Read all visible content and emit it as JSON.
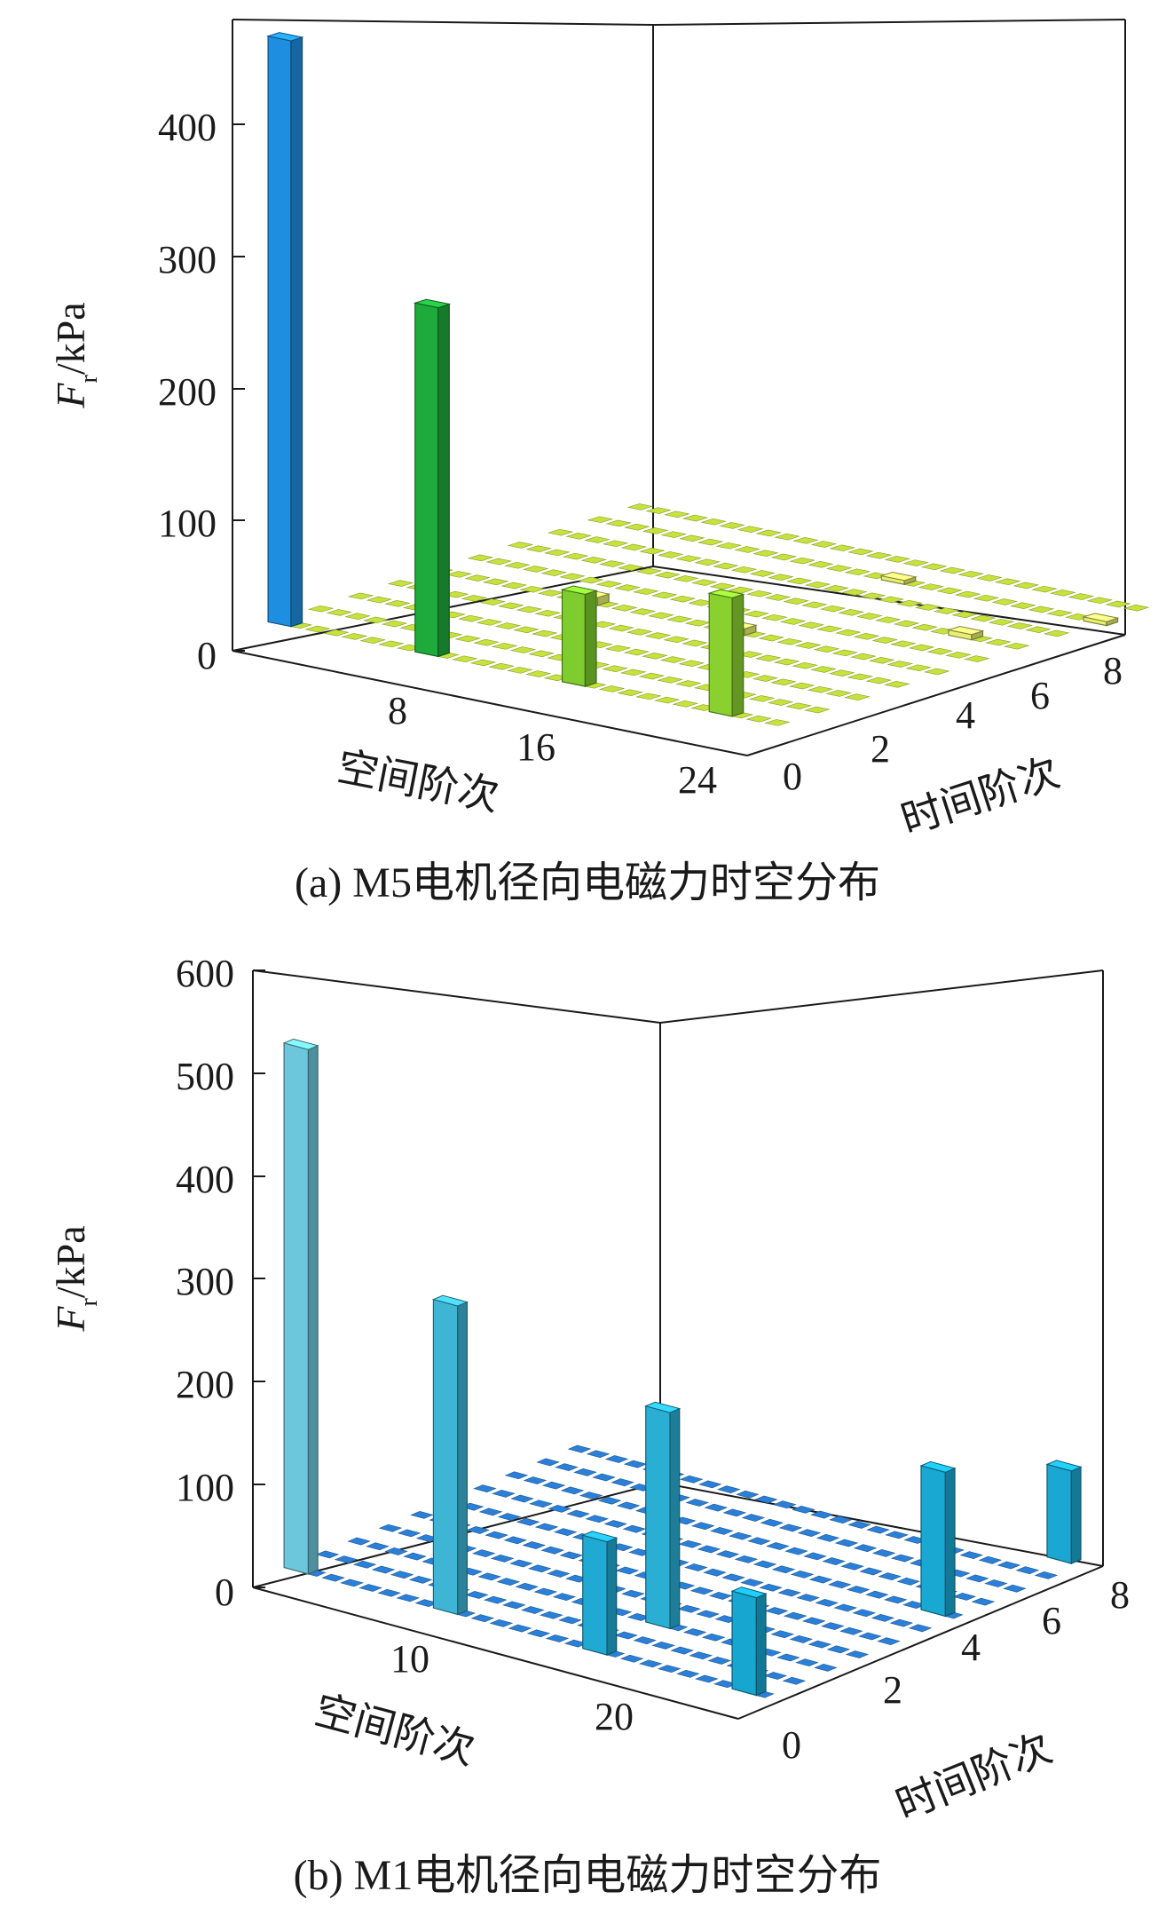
{
  "chart_data": [
    {
      "type": "bar3d",
      "caption": "(a) M5电机径向电磁力时空分布",
      "zlabel_main": "F",
      "zlabel_sub": "r",
      "zlabel_unit": "/kPa",
      "xlabel": "空间阶次",
      "ylabel": "时间阶次",
      "zlim": [
        0,
        480
      ],
      "xlim": [
        0,
        28
      ],
      "ylim": [
        0,
        9
      ],
      "z_ticks": [
        "0",
        "100",
        "200",
        "300",
        "400"
      ],
      "x_ticks": [
        "8",
        "16",
        "24"
      ],
      "y_ticks": [
        "0",
        "2",
        "4",
        "6",
        "8"
      ],
      "bars": [
        {
          "x": 0,
          "y": 0,
          "z": 445,
          "color": "#1e8fe0"
        },
        {
          "x": 8,
          "y": 0,
          "z": 265,
          "color": "#1faa3c"
        },
        {
          "x": 16,
          "y": 0,
          "z": 70,
          "color": "#7fcc2e"
        },
        {
          "x": 24,
          "y": 0,
          "z": 90,
          "color": "#8ad12f"
        },
        {
          "x": 8,
          "y": 4,
          "z": 6,
          "color": "#e8f070"
        },
        {
          "x": 16,
          "y": 4,
          "z": 5,
          "color": "#e8f070"
        },
        {
          "x": 24,
          "y": 6,
          "z": 4,
          "color": "#e8f070"
        },
        {
          "x": 27,
          "y": 8,
          "z": 3,
          "color": "#e8f070"
        },
        {
          "x": 16,
          "y": 8,
          "z": 3,
          "color": "#e8f070"
        }
      ],
      "floor_color": "#c6e23c"
    },
    {
      "type": "bar3d",
      "caption": "(b) M1电机径向电磁力时空分布",
      "zlabel_main": "F",
      "zlabel_sub": "r",
      "zlabel_unit": "/kPa",
      "xlabel": "空间阶次",
      "ylabel": "时间阶次",
      "zlim": [
        0,
        600
      ],
      "xlim": [
        0,
        26
      ],
      "ylim": [
        0,
        9
      ],
      "z_ticks": [
        "0",
        "100",
        "200",
        "300",
        "400",
        "500",
        "600"
      ],
      "x_ticks": [
        "10",
        "20"
      ],
      "y_ticks": [
        "0",
        "2",
        "4",
        "6",
        "8"
      ],
      "bars": [
        {
          "x": 0,
          "y": 0,
          "z": 510,
          "color": "#6cc6dc"
        },
        {
          "x": 8,
          "y": 0,
          "z": 300,
          "color": "#3fb5d6"
        },
        {
          "x": 16,
          "y": 2,
          "z": 210,
          "color": "#2aaed4"
        },
        {
          "x": 16,
          "y": 0,
          "z": 110,
          "color": "#20a9d2"
        },
        {
          "x": 24,
          "y": 0,
          "z": 95,
          "color": "#16a6d0"
        },
        {
          "x": 24,
          "y": 6,
          "z": 140,
          "color": "#18a8d2"
        },
        {
          "x": 24,
          "y": 10,
          "z": 90,
          "color": "#1aa8d2"
        }
      ],
      "floor_color": "#2b7fd6"
    }
  ]
}
